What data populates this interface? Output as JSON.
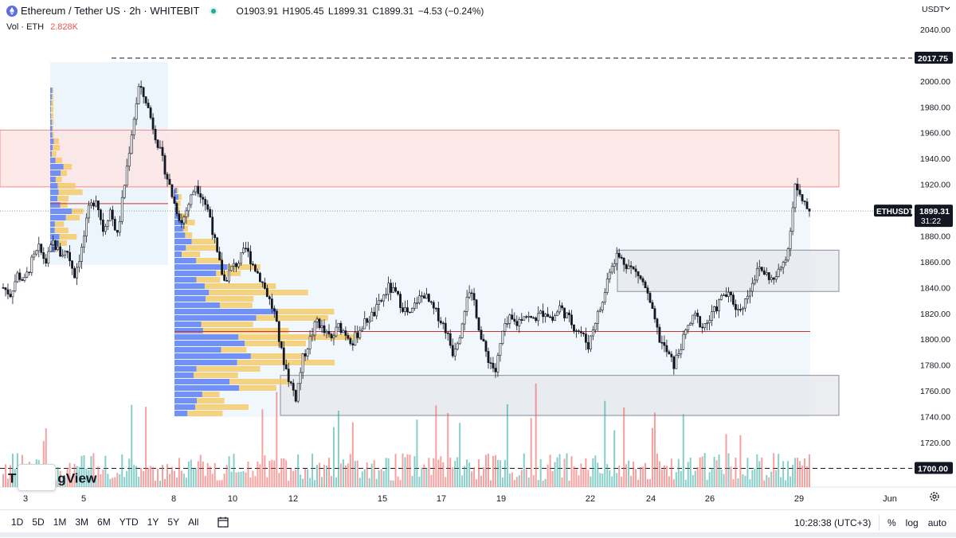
{
  "header": {
    "title": "Ethereum / Tether US · 2h · WHITEBIT",
    "open": "O1903.91",
    "high": "H1905.45",
    "low": "L1899.31",
    "close": "C1899.31",
    "change": "−4.53 (−0.24%)"
  },
  "volume": {
    "label": "Vol · ETH",
    "value": "2.828K"
  },
  "watermark": {
    "left": "T",
    "right": "gView"
  },
  "price_axis": {
    "currency": "USDT"
  },
  "price_tags": {
    "symbol": "ETHUSDT",
    "last": "1899.31",
    "countdown": "31:22",
    "high_line": "2017.75",
    "low_line": "1700.00"
  },
  "bottom": {
    "ranges": [
      "1D",
      "5D",
      "1M",
      "3M",
      "6M",
      "YTD",
      "1Y",
      "5Y",
      "All"
    ],
    "time": "10:28:38 (UTC+3)",
    "options": [
      "%",
      "log",
      "auto"
    ]
  },
  "colors": {
    "up": "#26a69a",
    "down": "#ef5350",
    "resistance_zone": "#fde2e2",
    "support_zone": "#e5e7eb",
    "vp_up": "#5b7ff5",
    "vp_down": "#f6c85f",
    "poc": "#d32f2f"
  },
  "chart_data": {
    "type": "candlestick",
    "ylim": [
      1700,
      2050
    ],
    "yticks": [
      1720,
      1740,
      1760,
      1780,
      1800,
      1820,
      1840,
      1860,
      1880,
      1900,
      1920,
      1940,
      1960,
      1980,
      2000,
      2020,
      2040
    ],
    "xticks": [
      "3",
      "5",
      "8",
      "10",
      "12",
      "15",
      "17",
      "19",
      "22",
      "24",
      "26",
      "29",
      "Jun"
    ],
    "key_levels": [
      2017.75,
      1700.0
    ],
    "poc_levels": [
      1905,
      1806
    ],
    "zones": [
      {
        "from": 1918,
        "to": 1962,
        "kind": "resistance"
      },
      {
        "from": 1837,
        "to": 1869,
        "kind": "range"
      },
      {
        "from": 1741,
        "to": 1772,
        "kind": "support"
      }
    ],
    "path": [
      1840,
      1835,
      1850,
      1845,
      1860,
      1870,
      1860,
      1875,
      1866,
      1868,
      1850,
      1870,
      1900,
      1910,
      1885,
      1900,
      1880,
      1920,
      1960,
      1995,
      1985,
      1965,
      1945,
      1925,
      1905,
      1890,
      1905,
      1920,
      1910,
      1895,
      1865,
      1845,
      1855,
      1860,
      1870,
      1858,
      1848,
      1835,
      1820,
      1790,
      1770,
      1755,
      1785,
      1800,
      1815,
      1805,
      1800,
      1810,
      1805,
      1798,
      1808,
      1815,
      1820,
      1830,
      1840,
      1835,
      1825,
      1818,
      1830,
      1835,
      1825,
      1818,
      1808,
      1790,
      1805,
      1835,
      1830,
      1800,
      1785,
      1775,
      1805,
      1815,
      1812,
      1820,
      1815,
      1818,
      1822,
      1815,
      1825,
      1818,
      1810,
      1805,
      1795,
      1815,
      1828,
      1855,
      1865,
      1860,
      1855,
      1850,
      1840,
      1820,
      1800,
      1790,
      1780,
      1795,
      1810,
      1818,
      1810,
      1815,
      1825,
      1835,
      1832,
      1822,
      1830,
      1845,
      1855,
      1850,
      1845,
      1855,
      1870,
      1920,
      1905,
      1899.31
    ],
    "volume_peaks": [
      1760,
      1790
    ]
  }
}
